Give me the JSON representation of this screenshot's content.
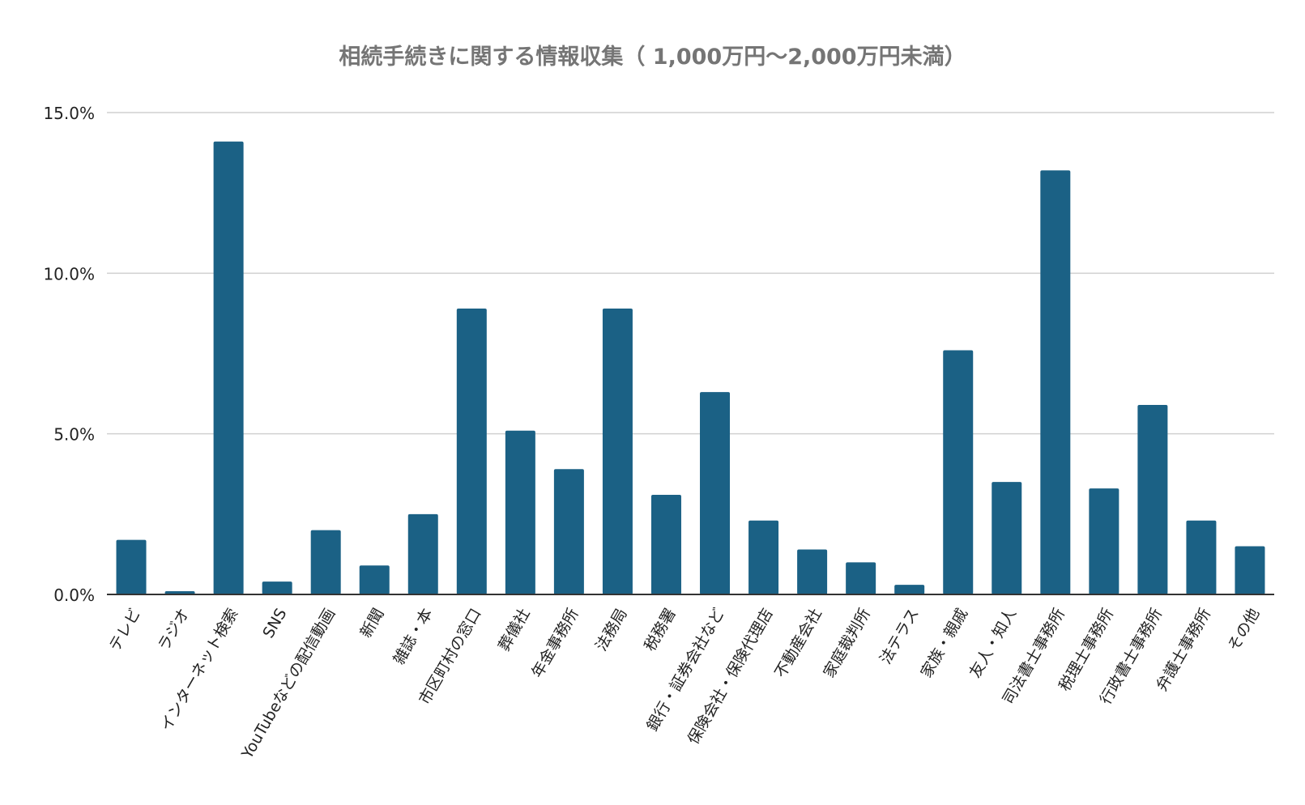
{
  "chart_data": {
    "type": "bar",
    "title": "相続手続きに関する情報収集（ 1,000万円～2,000万円未満）",
    "xlabel": "",
    "ylabel": "",
    "ylim": [
      0,
      15
    ],
    "y_ticks": [
      0,
      5,
      10,
      15
    ],
    "y_tick_labels": [
      "0.0%",
      "5.0%",
      "10.0%",
      "15.0%"
    ],
    "grid": true,
    "legend": "none",
    "bar_color": "#1b6185",
    "categories": [
      "テレビ",
      "ラジオ",
      "インターネット検索",
      "SNS",
      "YouTubeなどの配信動画",
      "新聞",
      "雑誌・本",
      "市区町村の窓口",
      "葬儀社",
      "年金事務所",
      "法務局",
      "税務署",
      "銀行・証券会社など",
      "保険会社・保険代理店",
      "不動産会社",
      "家庭裁判所",
      "法テラス",
      "家族・親戚",
      "友人・知人",
      "司法書士事務所",
      "税理士事務所",
      "行政書士事務所",
      "弁護士事務所",
      "その他"
    ],
    "values": [
      1.7,
      0.1,
      14.1,
      0.4,
      2.0,
      0.9,
      2.5,
      8.9,
      5.1,
      3.9,
      8.9,
      3.1,
      6.3,
      2.3,
      1.4,
      1.0,
      0.3,
      7.6,
      3.5,
      13.2,
      3.3,
      5.9,
      2.3,
      1.5
    ]
  }
}
